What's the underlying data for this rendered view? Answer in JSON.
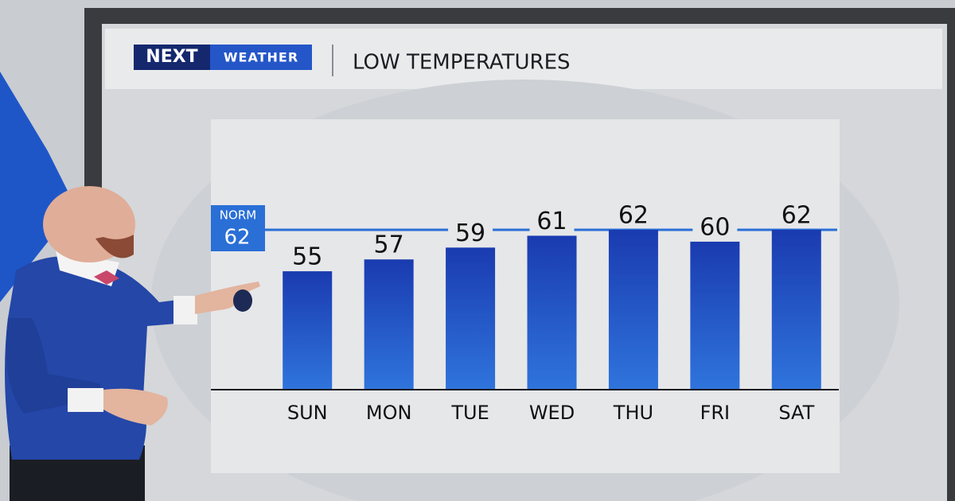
{
  "chart_data": {
    "type": "bar",
    "logo": {
      "mark": "NEXT",
      "text": "WEATHER"
    },
    "title": "LOW TEMPERATURES",
    "categories": [
      "SUN",
      "MON",
      "TUE",
      "WED",
      "THU",
      "FRI",
      "SAT"
    ],
    "values": [
      55,
      57,
      59,
      61,
      62,
      60,
      62
    ],
    "color": "#1f4fc4",
    "normal": {
      "label": "NORM",
      "value": 62,
      "color": "#2a6fd6"
    },
    "ylim": [
      35,
      80
    ]
  }
}
